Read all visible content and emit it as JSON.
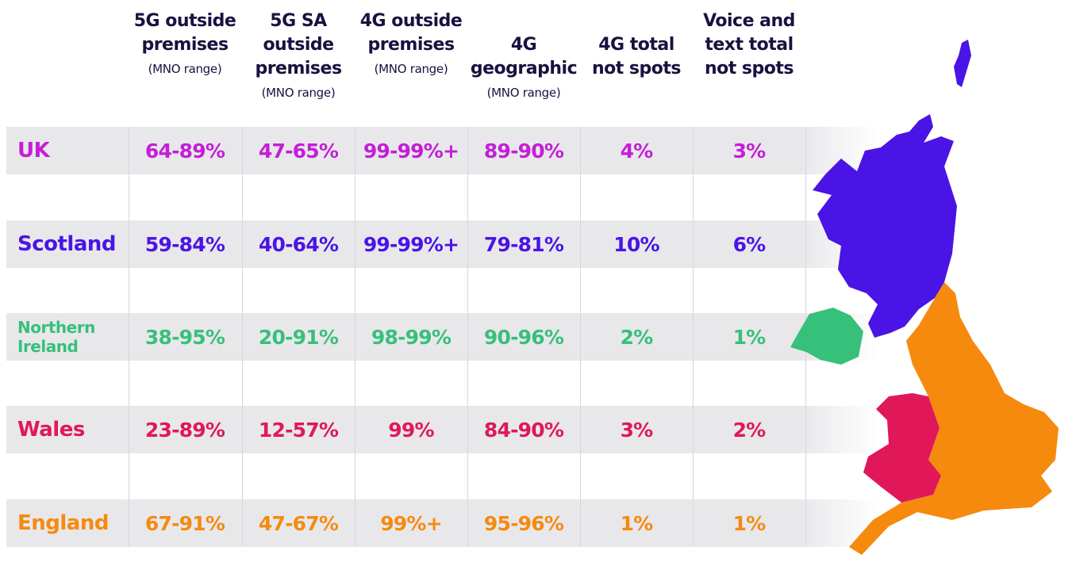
{
  "headers": [
    {
      "title": "5G outside premises",
      "sub": "(MNO range)"
    },
    {
      "title": "5G SA outside premises",
      "sub": "(MNO range)"
    },
    {
      "title": "4G outside premises",
      "sub": "(MNO range)"
    },
    {
      "title": "4G geographic",
      "sub": "(MNO range)"
    },
    {
      "title": "4G total not spots",
      "sub": ""
    },
    {
      "title": "Voice and text total not spots",
      "sub": ""
    }
  ],
  "rows": [
    {
      "label": "UK",
      "color": "#c41ed8",
      "values": [
        "64-89%",
        "47-65%",
        "99-99%+",
        "89-90%",
        "4%",
        "3%"
      ]
    },
    {
      "label": "Scotland",
      "color": "#4b14e6",
      "values": [
        "59-84%",
        "40-64%",
        "99-99%+",
        "79-81%",
        "10%",
        "6%"
      ]
    },
    {
      "label": "Northern Ireland",
      "color": "#37c07a",
      "values": [
        "38-95%",
        "20-91%",
        "98-99%",
        "90-96%",
        "2%",
        "1%"
      ]
    },
    {
      "label": "Wales",
      "color": "#e0185a",
      "values": [
        "23-89%",
        "12-57%",
        "99%",
        "84-90%",
        "3%",
        "2%"
      ]
    },
    {
      "label": "England",
      "color": "#f68a0e",
      "values": [
        "67-91%",
        "47-67%",
        "99%+",
        "95-96%",
        "1%",
        "1%"
      ]
    }
  ],
  "map": {
    "scotland_color": "#4b14e6",
    "northern_ireland_color": "#37c07a",
    "wales_color": "#e0185a",
    "england_color": "#f68a0e"
  }
}
